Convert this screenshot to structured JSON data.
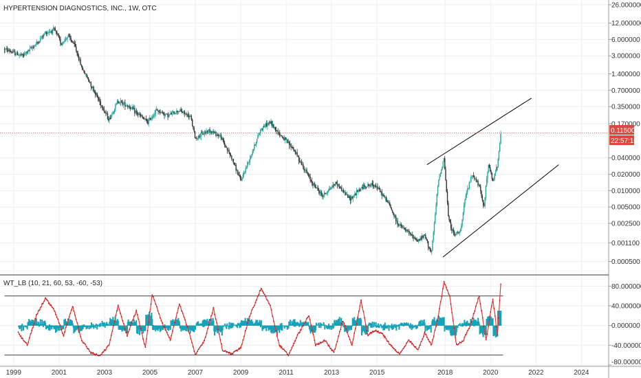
{
  "price_pane": {
    "title": "HYPERTENSION DIAGNOSTICS, INC., 1W, OTC",
    "y_ticks": [
      "26.000000",
      "12.000000",
      "6.000000",
      "3.000000",
      "1.400000",
      "0.700000",
      "0.350000",
      "0.170000",
      "0.040000",
      "0.020000",
      "0.010000",
      "0.005000",
      "0.002500",
      "0.001100",
      "0.000500"
    ],
    "last_price": "0.115000",
    "countdown": "22:57:10"
  },
  "indicator_pane": {
    "title": "WT_LB (10, 21, 60, 53, -60, -53)",
    "y_ticks": [
      "80.000000",
      "40.000000",
      "0.000000",
      "-40.000000",
      "-80.000000"
    ]
  },
  "x_ticks": [
    "1999",
    "2001",
    "2003",
    "2005",
    "2007",
    "2009",
    "2011",
    "2013",
    "2015",
    "2018",
    "2020",
    "2022",
    "2024"
  ],
  "colors": {
    "up": "#26a69a",
    "down": "#333333",
    "wt1": "#e53935",
    "hist": "#17a2b8",
    "price_line": "#e53935",
    "badge": "#e0483c",
    "grid": "#eeeeee",
    "trend": "#000000"
  },
  "chart_data": [
    {
      "type": "candlestick",
      "title": "HYPERTENSION DIAGNOSTICS, INC., 1W, OTC",
      "y_scale": "log",
      "ylim": [
        0.0003,
        30
      ],
      "xlim": [
        1998.4,
        2025.2
      ],
      "series": [
        {
          "name": "",
          "points": [
            [
              1998.6,
              4.0
            ],
            [
              1999.0,
              3.4
            ],
            [
              1999.4,
              3.0
            ],
            [
              1999.8,
              4.2
            ],
            [
              2000.1,
              5.5
            ],
            [
              2000.4,
              8.0
            ],
            [
              2000.8,
              9.0
            ],
            [
              2001.1,
              5.0
            ],
            [
              2001.4,
              7.0
            ],
            [
              2001.7,
              4.5
            ],
            [
              2002.0,
              1.8
            ],
            [
              2002.4,
              0.9
            ],
            [
              2002.9,
              0.35
            ],
            [
              2003.2,
              0.2
            ],
            [
              2003.6,
              0.45
            ],
            [
              2004.1,
              0.35
            ],
            [
              2004.5,
              0.25
            ],
            [
              2004.9,
              0.18
            ],
            [
              2005.3,
              0.3
            ],
            [
              2005.8,
              0.24
            ],
            [
              2006.3,
              0.3
            ],
            [
              2006.8,
              0.22
            ],
            [
              2007.0,
              0.09
            ],
            [
              2007.6,
              0.13
            ],
            [
              2008.1,
              0.1
            ],
            [
              2008.6,
              0.04
            ],
            [
              2009.0,
              0.015
            ],
            [
              2009.4,
              0.04
            ],
            [
              2009.9,
              0.14
            ],
            [
              2010.3,
              0.18
            ],
            [
              2010.7,
              0.11
            ],
            [
              2011.3,
              0.06
            ],
            [
              2011.7,
              0.03
            ],
            [
              2012.1,
              0.015
            ],
            [
              2012.6,
              0.008
            ],
            [
              2013.2,
              0.014
            ],
            [
              2013.8,
              0.007
            ],
            [
              2014.4,
              0.012
            ],
            [
              2014.9,
              0.013
            ],
            [
              2015.5,
              0.006
            ],
            [
              2015.9,
              0.0025
            ],
            [
              2016.3,
              0.0018
            ],
            [
              2016.8,
              0.0012
            ],
            [
              2017.1,
              0.0015
            ],
            [
              2017.4,
              0.0007
            ],
            [
              2017.7,
              0.015
            ],
            [
              2017.95,
              0.04
            ],
            [
              2018.15,
              0.003
            ],
            [
              2018.4,
              0.0015
            ],
            [
              2018.7,
              0.002
            ],
            [
              2018.9,
              0.008
            ],
            [
              2019.2,
              0.02
            ],
            [
              2019.5,
              0.012
            ],
            [
              2019.7,
              0.005
            ],
            [
              2019.9,
              0.03
            ],
            [
              2020.1,
              0.015
            ],
            [
              2020.3,
              0.03
            ],
            [
              2020.45,
              0.115
            ]
          ]
        }
      ],
      "trendlines": [
        {
          "from": [
            2017.2,
            0.03
          ],
          "to": [
            2021.8,
            0.5
          ]
        },
        {
          "from": [
            2017.9,
            0.0006
          ],
          "to": [
            2023.0,
            0.03
          ]
        }
      ]
    },
    {
      "type": "line",
      "title": "WT_LB (10, 21, 60, 53, -60, -53)",
      "ylim": [
        -80,
        100
      ],
      "levels": [
        60,
        -60
      ],
      "series": [
        {
          "name": "",
          "points": [
            [
              1999.2,
              -15
            ],
            [
              1999.6,
              -40
            ],
            [
              2000.0,
              20
            ],
            [
              2000.4,
              55
            ],
            [
              2000.8,
              30
            ],
            [
              2001.2,
              -20
            ],
            [
              2001.6,
              40
            ],
            [
              2002.0,
              -30
            ],
            [
              2002.4,
              -55
            ],
            [
              2002.8,
              -62
            ],
            [
              2003.2,
              -40
            ],
            [
              2003.6,
              40
            ],
            [
              2004.0,
              -20
            ],
            [
              2004.4,
              30
            ],
            [
              2004.8,
              -45
            ],
            [
              2005.1,
              63
            ],
            [
              2005.5,
              10
            ],
            [
              2005.9,
              -30
            ],
            [
              2006.3,
              45
            ],
            [
              2006.7,
              -10
            ],
            [
              2007.0,
              -60
            ],
            [
              2007.4,
              -30
            ],
            [
              2007.8,
              35
            ],
            [
              2008.2,
              -50
            ],
            [
              2008.6,
              -58
            ],
            [
              2009.0,
              -45
            ],
            [
              2009.4,
              20
            ],
            [
              2009.9,
              75
            ],
            [
              2010.3,
              40
            ],
            [
              2010.7,
              -40
            ],
            [
              2011.1,
              -60
            ],
            [
              2011.5,
              -20
            ],
            [
              2012.0,
              20
            ],
            [
              2012.3,
              -40
            ],
            [
              2012.7,
              -30
            ],
            [
              2013.1,
              -55
            ],
            [
              2013.5,
              10
            ],
            [
              2013.9,
              -40
            ],
            [
              2014.3,
              50
            ],
            [
              2014.6,
              -20
            ],
            [
              2014.9,
              -10
            ],
            [
              2015.2,
              -15
            ],
            [
              2015.6,
              -40
            ],
            [
              2016.0,
              -58
            ],
            [
              2016.4,
              -30
            ],
            [
              2016.8,
              -50
            ],
            [
              2017.1,
              -15
            ],
            [
              2017.4,
              -40
            ],
            [
              2017.7,
              20
            ],
            [
              2017.95,
              88
            ],
            [
              2018.2,
              60
            ],
            [
              2018.5,
              -40
            ],
            [
              2018.8,
              -30
            ],
            [
              2019.1,
              0
            ],
            [
              2019.5,
              60
            ],
            [
              2019.8,
              -30
            ],
            [
              2020.1,
              55
            ],
            [
              2020.3,
              -20
            ],
            [
              2020.45,
              85
            ]
          ]
        }
      ]
    }
  ]
}
